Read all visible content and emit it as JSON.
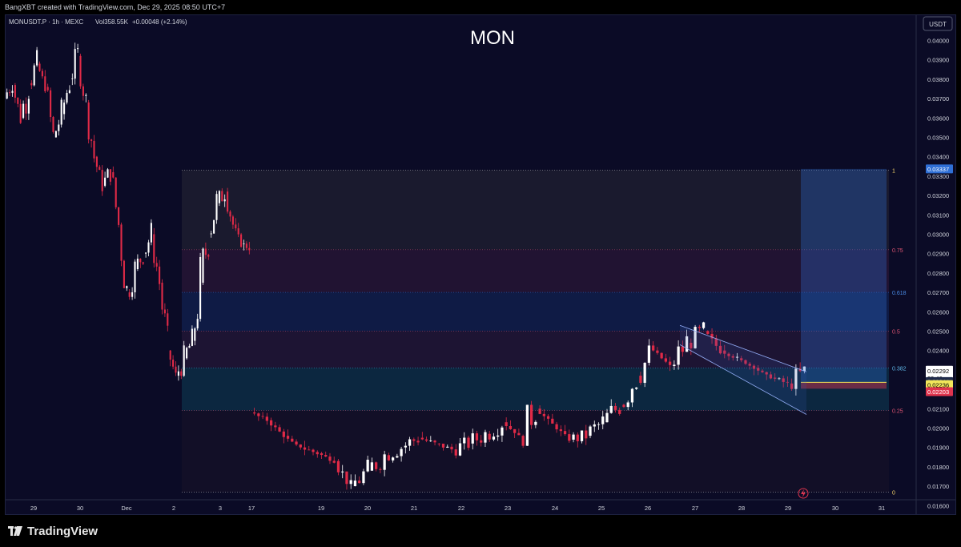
{
  "header": {
    "attribution": "BangXBT created with TradingView.com, Dec 29, 2025 08:50 UTC+7",
    "symbol_info": "MONUSDT.P · 1h · MEXC",
    "volume": "Vol358.55K",
    "change": "+0.00048 (+2.14%)"
  },
  "footer": {
    "brand": "TradingView",
    "logo_icon": "tradingview-logo-icon"
  },
  "colors": {
    "background": "#0b0b26",
    "up": "#ffffff",
    "down": "#e02a47",
    "fib_line": "#c9c9c9",
    "price_current": "#ffffff",
    "price_entry": "#f2e65a",
    "price_stop": "#e0344e",
    "price_target": "#2f6fd6"
  },
  "chart_data": {
    "type": "candlestick",
    "title": "MON",
    "currency": "USDT",
    "ylim": [
      0.0163,
      0.0413
    ],
    "y_ticks": [
      "0.04000",
      "0.03900",
      "0.03800",
      "0.03700",
      "0.03600",
      "0.03500",
      "0.03400",
      "0.03300",
      "0.03200",
      "0.03100",
      "0.03000",
      "0.02900",
      "0.02800",
      "0.02700",
      "0.02600",
      "0.02500",
      "0.02400",
      "0.02300",
      "0.02200",
      "0.02100",
      "0.02000",
      "0.01900",
      "0.01800",
      "0.01700",
      "0.01600"
    ],
    "x_ticks": [
      "29",
      "30",
      "Dec",
      "2",
      "3",
      "17",
      "19",
      "20",
      "21",
      "22",
      "23",
      "24",
      "25",
      "26",
      "27",
      "28",
      "29",
      "30",
      "31"
    ],
    "price_labels": {
      "target": "0.03337",
      "current": "0.02292",
      "countdown": "09:46",
      "level_a": "0.02244",
      "entry": "0.02236",
      "stop": "0.02203"
    },
    "fib_levels": [
      {
        "label": "1",
        "value": 0.0333
      },
      {
        "label": "0.75",
        "value": 0.0292
      },
      {
        "label": "0.618",
        "value": 0.027
      },
      {
        "label": "0.5",
        "value": 0.025
      },
      {
        "label": "0.382",
        "value": 0.0231
      },
      {
        "label": "0.25",
        "value": 0.0209
      },
      {
        "label": "0",
        "value": 0.0167
      }
    ],
    "price_path": [
      [
        0.037,
        0.038
      ],
      [
        0.0377,
        0.036
      ],
      [
        0.036,
        0.0378
      ],
      [
        0.0378,
        0.0388
      ],
      [
        0.0388,
        0.0376
      ],
      [
        0.0376,
        0.035
      ],
      [
        0.035,
        0.0362
      ],
      [
        0.0362,
        0.038
      ],
      [
        0.038,
        0.0392
      ],
      [
        0.0392,
        0.0368
      ],
      [
        0.0368,
        0.034
      ],
      [
        0.034,
        0.0325
      ],
      [
        0.0325,
        0.0332
      ],
      [
        0.0332,
        0.0305
      ],
      [
        0.0305,
        0.027
      ],
      [
        0.027,
        0.0282
      ],
      [
        0.0282,
        0.029
      ],
      [
        0.029,
        0.03
      ],
      [
        0.03,
        0.0275
      ],
      [
        0.0275,
        0.024
      ],
      [
        0.024,
        0.0227
      ],
      [
        0.0227,
        0.0236
      ],
      [
        0.0236,
        0.0245
      ],
      [
        0.0245,
        0.0275
      ],
      [
        0.0275,
        0.03
      ],
      [
        0.03,
        0.0316
      ],
      [
        0.0316,
        0.0322
      ],
      [
        0.0322,
        0.0305
      ],
      [
        0.0305,
        0.0295
      ],
      [
        0.0295,
        0.0293
      ]
    ],
    "price_path_right": [
      [
        0.0208,
        0.0204
      ],
      [
        0.0204,
        0.0196
      ],
      [
        0.0196,
        0.019
      ],
      [
        0.019,
        0.0187
      ],
      [
        0.0187,
        0.0183
      ],
      [
        0.0183,
        0.017
      ],
      [
        0.017,
        0.0178
      ],
      [
        0.0178,
        0.0186
      ],
      [
        0.0186,
        0.019
      ],
      [
        0.019,
        0.0195
      ],
      [
        0.0195,
        0.0192
      ],
      [
        0.0192,
        0.0189
      ],
      [
        0.0189,
        0.0192
      ],
      [
        0.0192,
        0.0197
      ],
      [
        0.0197,
        0.0203
      ],
      [
        0.0203,
        0.0196
      ],
      [
        0.0196,
        0.021
      ],
      [
        0.021,
        0.0202
      ],
      [
        0.0202,
        0.0194
      ],
      [
        0.0194,
        0.0196
      ],
      [
        0.0196,
        0.0203
      ],
      [
        0.0203,
        0.0212
      ],
      [
        0.0212,
        0.0227
      ],
      [
        0.0227,
        0.024
      ],
      [
        0.024,
        0.0232
      ],
      [
        0.0232,
        0.0244
      ],
      [
        0.0244,
        0.025
      ],
      [
        0.025,
        0.024
      ],
      [
        0.024,
        0.0236
      ],
      [
        0.0236,
        0.0231
      ],
      [
        0.0231,
        0.0226
      ],
      [
        0.0226,
        0.0223
      ],
      [
        0.0223,
        0.0229
      ]
    ]
  }
}
